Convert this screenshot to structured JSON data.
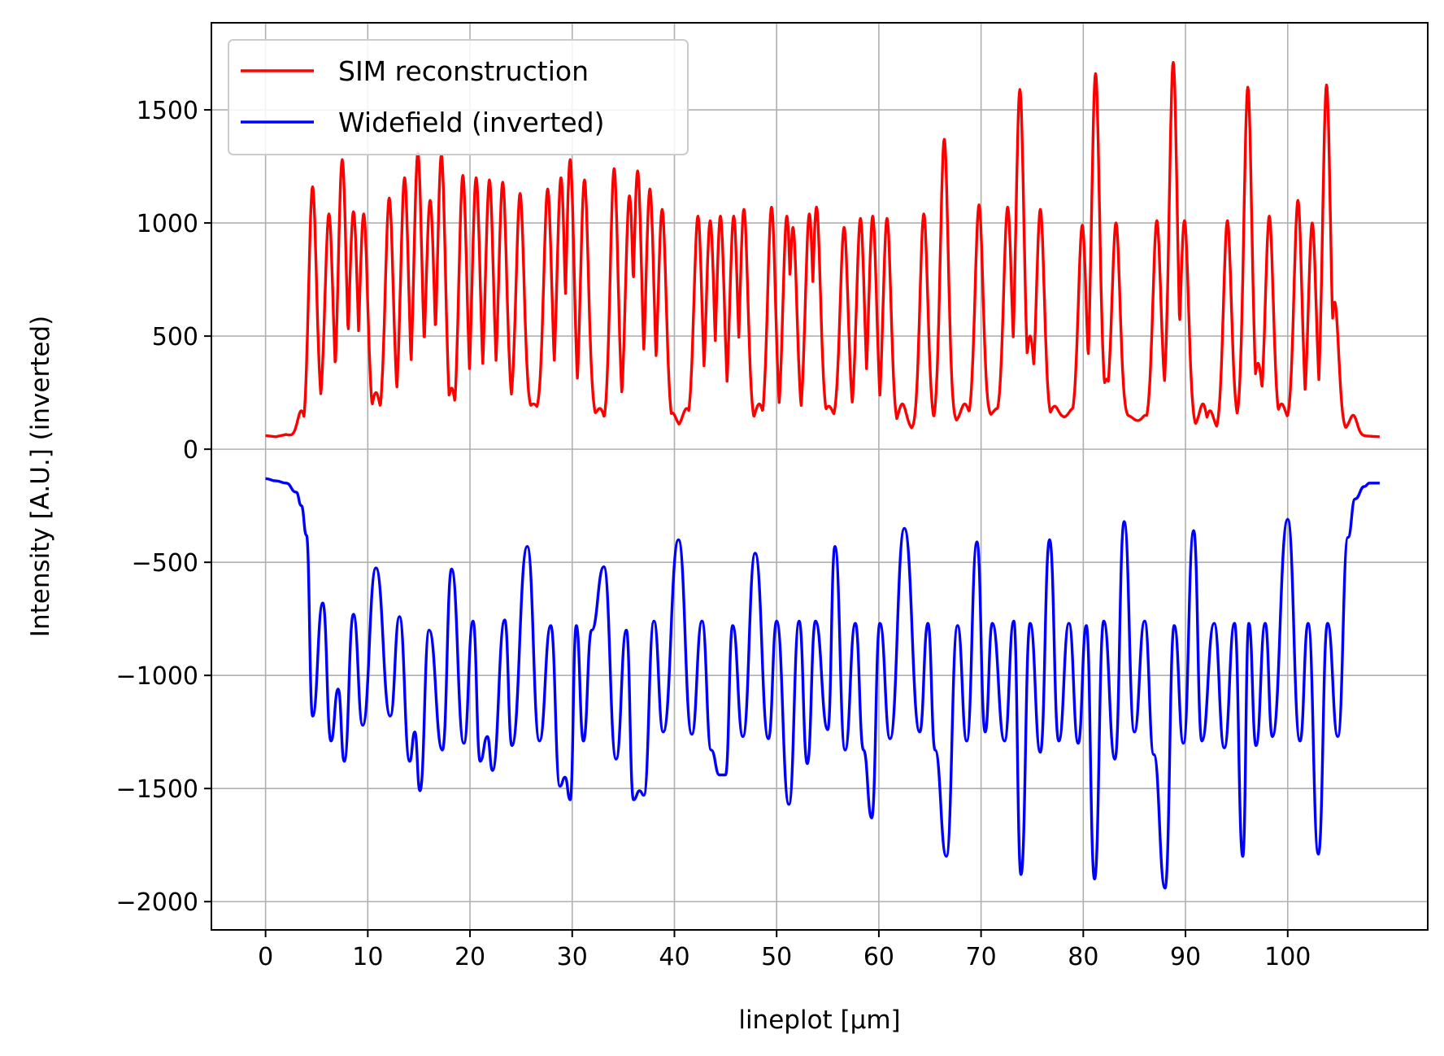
{
  "chart_data": {
    "type": "line",
    "title": "",
    "xlabel": "lineplot [µm]",
    "ylabel": "Intensity [A.U.] (inverted)",
    "xlim": [
      -5.3,
      113.7
    ],
    "ylim": [
      -2125,
      1885
    ],
    "xticks": [
      0,
      10,
      20,
      30,
      40,
      50,
      60,
      70,
      80,
      90,
      100
    ],
    "yticks": [
      -2000,
      -1500,
      -1000,
      -500,
      0,
      500,
      1000,
      1500
    ],
    "ytick_labels": [
      "−2000",
      "−1500",
      "−1000",
      "−500",
      "0",
      "500",
      "1000",
      "1500"
    ],
    "grid": true,
    "legend_position": "top-left",
    "series": [
      {
        "name": "SIM reconstruction",
        "color": "#ff0000",
        "baseline_x": [
          0,
          1,
          2,
          3,
          4,
          5.5,
          7,
          8.5,
          10,
          12,
          14,
          16,
          18,
          20,
          22,
          24,
          26,
          28,
          30,
          32,
          34,
          36,
          38,
          40,
          42,
          44,
          46,
          48,
          50,
          52,
          54,
          56,
          58,
          60,
          62,
          64,
          66,
          68,
          70,
          72,
          74,
          76,
          78,
          80,
          82,
          84,
          86,
          88,
          90,
          92,
          94,
          96,
          98,
          100,
          102,
          104,
          106,
          107,
          109
        ],
        "baseline_y": [
          60,
          55,
          65,
          55,
          40,
          140,
          120,
          170,
          100,
          130,
          110,
          190,
          60,
          100,
          150,
          160,
          170,
          160,
          80,
          150,
          60,
          130,
          120,
          90,
          120,
          80,
          80,
          110,
          60,
          80,
          130,
          130,
          100,
          60,
          100,
          80,
          120,
          120,
          140,
          150,
          180,
          120,
          140,
          130,
          190,
          150,
          110,
          180,
          130,
          60,
          100,
          140,
          100,
          120,
          70,
          110,
          80,
          60,
          55
        ],
        "peaks": [
          [
            3.5,
            170
          ],
          [
            4.6,
            1160
          ],
          [
            6.2,
            1040
          ],
          [
            7.5,
            1280
          ],
          [
            8.6,
            1050
          ],
          [
            9.6,
            1040
          ],
          [
            10.8,
            250
          ],
          [
            12.1,
            1110
          ],
          [
            13.6,
            1200
          ],
          [
            14.9,
            1310
          ],
          [
            16.1,
            1100
          ],
          [
            17.2,
            1300
          ],
          [
            18.2,
            270
          ],
          [
            19.3,
            1210
          ],
          [
            20.6,
            1200
          ],
          [
            21.9,
            1190
          ],
          [
            23.2,
            1180
          ],
          [
            24.9,
            1130
          ],
          [
            25.4,
            200
          ],
          [
            26.2,
            200
          ],
          [
            27.6,
            1150
          ],
          [
            28.9,
            1200
          ],
          [
            29.8,
            1280
          ],
          [
            31.2,
            1190
          ],
          [
            32.7,
            180
          ],
          [
            34.1,
            1240
          ],
          [
            35.6,
            1120
          ],
          [
            36.4,
            1230
          ],
          [
            37.6,
            1150
          ],
          [
            38.8,
            1060
          ],
          [
            39.8,
            160
          ],
          [
            41.2,
            180
          ],
          [
            42.3,
            1030
          ],
          [
            43.5,
            1010
          ],
          [
            44.5,
            1030
          ],
          [
            45.8,
            1030
          ],
          [
            46.8,
            1060
          ],
          [
            48.3,
            200
          ],
          [
            49.5,
            1070
          ],
          [
            51.0,
            1030
          ],
          [
            51.6,
            980
          ],
          [
            53.2,
            1040
          ],
          [
            53.9,
            1070
          ],
          [
            55.1,
            190
          ],
          [
            56.6,
            980
          ],
          [
            58.2,
            1020
          ],
          [
            59.4,
            1030
          ],
          [
            60.8,
            1020
          ],
          [
            62.3,
            200
          ],
          [
            64.4,
            1040
          ],
          [
            66.4,
            1370
          ],
          [
            68.4,
            200
          ],
          [
            69.8,
            1080
          ],
          [
            71.6,
            180
          ],
          [
            72.6,
            1070
          ],
          [
            73.8,
            1590
          ],
          [
            74.8,
            500
          ],
          [
            75.8,
            1060
          ],
          [
            77.2,
            190
          ],
          [
            79.0,
            180
          ],
          [
            79.9,
            990
          ],
          [
            81.2,
            1660
          ],
          [
            82.3,
            310
          ],
          [
            83.2,
            1000
          ],
          [
            84.2,
            150
          ],
          [
            86.1,
            150
          ],
          [
            87.2,
            1010
          ],
          [
            88.8,
            1710
          ],
          [
            89.9,
            1010
          ],
          [
            91.7,
            200
          ],
          [
            92.4,
            170
          ],
          [
            94.1,
            1010
          ],
          [
            96.1,
            1600
          ],
          [
            97.1,
            380
          ],
          [
            98.2,
            1030
          ],
          [
            99.4,
            200
          ],
          [
            101.0,
            1100
          ],
          [
            102.4,
            1000
          ],
          [
            103.8,
            1610
          ],
          [
            104.6,
            650
          ],
          [
            106.4,
            150
          ]
        ],
        "peak_width_um": 0.38,
        "x_range": [
          0,
          109
        ]
      },
      {
        "name": "Widefield (inverted)",
        "color": "#0000ff",
        "x": [
          0,
          1,
          2,
          3,
          3.5,
          4,
          4.6,
          5.6,
          6.4,
          7.1,
          7.7,
          8.6,
          9.5,
          10.8,
          12.2,
          13.1,
          14.1,
          14.6,
          15.1,
          16.0,
          17.3,
          18.2,
          19.4,
          20.3,
          21.0,
          21.7,
          22.2,
          23.4,
          24.1,
          25.6,
          26.8,
          27.9,
          28.8,
          29.3,
          29.8,
          30.4,
          31.1,
          31.9,
          33.1,
          34.3,
          35.3,
          36.0,
          36.6,
          37.0,
          38.0,
          38.9,
          40.4,
          41.7,
          42.7,
          43.6,
          44.4,
          45.0,
          45.7,
          46.7,
          47.9,
          49.2,
          50.0,
          51.2,
          52.2,
          53.0,
          53.8,
          55.0,
          55.7,
          56.7,
          57.7,
          58.5,
          59.3,
          60.1,
          61.1,
          62.5,
          64.0,
          64.8,
          65.5,
          66.6,
          67.7,
          68.6,
          69.6,
          70.4,
          71.1,
          72.3,
          73.2,
          73.9,
          74.8,
          75.8,
          76.7,
          77.6,
          78.6,
          79.5,
          80.3,
          81.1,
          82.0,
          83.1,
          84.0,
          85.0,
          86.0,
          86.9,
          88.0,
          88.9,
          89.8,
          90.8,
          91.6,
          92.8,
          93.8,
          94.8,
          95.6,
          96.2,
          96.9,
          97.8,
          98.5,
          100.0,
          101.2,
          102.0,
          103.0,
          103.9,
          104.9,
          105.9,
          106.6,
          107.5,
          108.0,
          108.5,
          109.0
        ],
        "y": [
          -130,
          -140,
          -150,
          -190,
          -250,
          -380,
          -1180,
          -680,
          -1290,
          -1060,
          -1380,
          -730,
          -1220,
          -525,
          -1180,
          -740,
          -1380,
          -1250,
          -1510,
          -800,
          -1330,
          -530,
          -1300,
          -760,
          -1380,
          -1270,
          -1420,
          -755,
          -1310,
          -430,
          -1290,
          -780,
          -1490,
          -1450,
          -1550,
          -780,
          -1290,
          -800,
          -520,
          -1370,
          -800,
          -1550,
          -1510,
          -1530,
          -760,
          -1250,
          -400,
          -1260,
          -760,
          -1330,
          -1440,
          -1440,
          -780,
          -1270,
          -460,
          -1280,
          -760,
          -1570,
          -760,
          -1390,
          -760,
          -1240,
          -430,
          -1330,
          -770,
          -1330,
          -1630,
          -770,
          -1280,
          -350,
          -1250,
          -770,
          -1330,
          -1800,
          -780,
          -1290,
          -410,
          -1250,
          -770,
          -1290,
          -760,
          -1880,
          -770,
          -1340,
          -400,
          -1290,
          -770,
          -1300,
          -780,
          -1900,
          -760,
          -1370,
          -320,
          -1250,
          -760,
          -1350,
          -1940,
          -780,
          -1300,
          -360,
          -1290,
          -770,
          -1320,
          -770,
          -1800,
          -770,
          -1310,
          -770,
          -1270,
          -310,
          -1290,
          -770,
          -1790,
          -770,
          -1270,
          -390,
          -220,
          -165,
          -150,
          -150,
          -150
        ]
      }
    ]
  }
}
